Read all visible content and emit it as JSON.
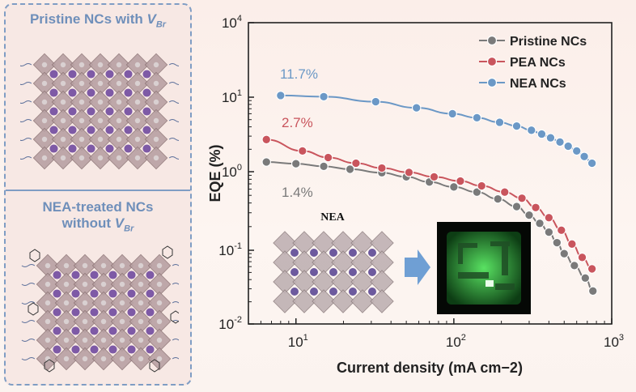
{
  "left_panel": {
    "top_title": {
      "line1": "Pristine NCs with ",
      "v": "V",
      "v_sub": "Br"
    },
    "bottom_title": {
      "line1": "NEA-treated NCs",
      "line2": "without ",
      "v": "V",
      "v_sub": "Br"
    }
  },
  "inset": {
    "label": "NEA"
  },
  "colors": {
    "pristine": "#7a7a7a",
    "pea": "#c9555d",
    "nea": "#6b98c6",
    "device_glow": "#3fd24a"
  },
  "chart_data": {
    "type": "line",
    "xlabel": "Current density (mA cm−2)",
    "ylabel": "EQE (%)",
    "x_scale": "log",
    "y_scale": "log",
    "xlim": [
      5,
      1000
    ],
    "ylim": [
      0.01,
      10000
    ],
    "x_ticks": [
      {
        "value": 10,
        "base": "10",
        "exp": "1"
      },
      {
        "value": 100,
        "base": "10",
        "exp": "2"
      },
      {
        "value": 1000,
        "base": "10",
        "exp": "3"
      }
    ],
    "y_ticks": [
      {
        "value": 0.01,
        "base": "10",
        "exp": "-2"
      },
      {
        "value": 0.1,
        "base": "10",
        "exp": "-1"
      },
      {
        "value": 1,
        "base": "10",
        "exp": "0"
      },
      {
        "value": 10,
        "base": "10",
        "exp": "1"
      },
      {
        "value": 10000,
        "base": "10",
        "exp": "4"
      }
    ],
    "legend_position": "top-right",
    "series": [
      {
        "name": "Pristine NCs",
        "color": "#7a7a7a",
        "annotation": "1.4%",
        "x": [
          6.5,
          10,
          15,
          22,
          35,
          50,
          70,
          100,
          140,
          190,
          250,
          300,
          350,
          400,
          450,
          500,
          580,
          680,
          760
        ],
        "y": [
          1.35,
          1.28,
          1.18,
          1.08,
          0.97,
          0.86,
          0.74,
          0.64,
          0.55,
          0.45,
          0.36,
          0.28,
          0.22,
          0.17,
          0.125,
          0.09,
          0.062,
          0.042,
          0.028
        ]
      },
      {
        "name": "PEA NCs",
        "color": "#c9555d",
        "annotation": "2.7%",
        "x": [
          6.5,
          11,
          16,
          24,
          35,
          52,
          75,
          110,
          150,
          210,
          270,
          330,
          400,
          480,
          560,
          650,
          750
        ],
        "y": [
          2.7,
          1.9,
          1.55,
          1.3,
          1.12,
          0.98,
          0.86,
          0.76,
          0.66,
          0.55,
          0.46,
          0.35,
          0.26,
          0.18,
          0.12,
          0.08,
          0.056
        ]
      },
      {
        "name": "NEA NCs",
        "color": "#6b98c6",
        "annotation": "11.7%",
        "x": [
          8,
          15,
          32,
          58,
          98,
          140,
          195,
          250,
          310,
          360,
          410,
          470,
          530,
          600,
          670,
          750
        ],
        "y": [
          11.7,
          10.5,
          8.7,
          7.2,
          6.0,
          5.3,
          4.6,
          4.1,
          3.6,
          3.2,
          2.85,
          2.5,
          2.2,
          1.9,
          1.6,
          1.3
        ]
      }
    ]
  }
}
